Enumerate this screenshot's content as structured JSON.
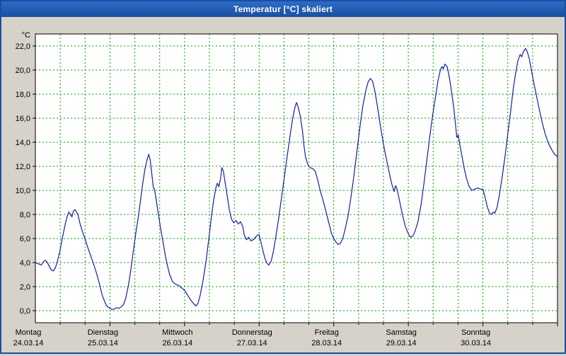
{
  "window": {
    "title": "Temperatur [°C] skaliert"
  },
  "chart_data": {
    "type": "line",
    "title": "Temperatur [°C] skaliert",
    "unit_label": "°C",
    "ylim": [
      -1,
      23
    ],
    "grid": {
      "enabled": true,
      "color": "#00a000",
      "vlines_per_day": 3
    },
    "line_color": "#1a1aa8",
    "y_ticks": {
      "values": [
        0,
        2,
        4,
        6,
        8,
        10,
        12,
        14,
        16,
        18,
        20,
        22
      ],
      "labels": [
        "0,0",
        "2,0",
        "4,0",
        "6,0",
        "8,0",
        "10,0",
        "12,0",
        "14,0",
        "16,0",
        "18,0",
        "20,0",
        "22,0"
      ]
    },
    "x_days": [
      {
        "name": "Montag",
        "date": "24.03.14"
      },
      {
        "name": "Dienstag",
        "date": "25.03.14"
      },
      {
        "name": "Mittwoch",
        "date": "26.03.14"
      },
      {
        "name": "Donnerstag",
        "date": "27.03.14"
      },
      {
        "name": "Freitag",
        "date": "28.03.14"
      },
      {
        "name": "Samstag",
        "date": "29.03.14"
      },
      {
        "name": "Sonntag",
        "date": "30.03.14"
      }
    ],
    "series": [
      {
        "name": "Temperatur",
        "points": [
          [
            0.0,
            4.0
          ],
          [
            0.04,
            3.9
          ],
          [
            0.08,
            3.8
          ],
          [
            0.1,
            4.0
          ],
          [
            0.13,
            4.2
          ],
          [
            0.15,
            4.1
          ],
          [
            0.17,
            3.9
          ],
          [
            0.21,
            3.4
          ],
          [
            0.24,
            3.3
          ],
          [
            0.27,
            3.6
          ],
          [
            0.3,
            4.2
          ],
          [
            0.33,
            5.0
          ],
          [
            0.36,
            6.0
          ],
          [
            0.4,
            7.2
          ],
          [
            0.43,
            7.9
          ],
          [
            0.45,
            8.2
          ],
          [
            0.47,
            8.0
          ],
          [
            0.49,
            7.8
          ],
          [
            0.51,
            8.3
          ],
          [
            0.53,
            8.4
          ],
          [
            0.55,
            8.2
          ],
          [
            0.57,
            8.0
          ],
          [
            0.6,
            7.2
          ],
          [
            0.63,
            6.6
          ],
          [
            0.67,
            5.9
          ],
          [
            0.7,
            5.3
          ],
          [
            0.74,
            4.6
          ],
          [
            0.78,
            3.9
          ],
          [
            0.82,
            3.1
          ],
          [
            0.86,
            2.2
          ],
          [
            0.9,
            1.2
          ],
          [
            0.94,
            0.6
          ],
          [
            0.97,
            0.3
          ],
          [
            1.0,
            0.2
          ],
          [
            1.03,
            0.1
          ],
          [
            1.06,
            0.15
          ],
          [
            1.09,
            0.25
          ],
          [
            1.12,
            0.2
          ],
          [
            1.15,
            0.3
          ],
          [
            1.18,
            0.5
          ],
          [
            1.21,
            1.0
          ],
          [
            1.25,
            2.2
          ],
          [
            1.28,
            3.4
          ],
          [
            1.31,
            4.8
          ],
          [
            1.34,
            6.2
          ],
          [
            1.38,
            7.8
          ],
          [
            1.41,
            9.2
          ],
          [
            1.44,
            10.6
          ],
          [
            1.47,
            11.8
          ],
          [
            1.5,
            12.6
          ],
          [
            1.52,
            13.0
          ],
          [
            1.54,
            12.5
          ],
          [
            1.56,
            11.4
          ],
          [
            1.58,
            10.3
          ],
          [
            1.6,
            10.0
          ],
          [
            1.62,
            9.2
          ],
          [
            1.65,
            8.0
          ],
          [
            1.68,
            6.8
          ],
          [
            1.72,
            5.4
          ],
          [
            1.76,
            4.0
          ],
          [
            1.8,
            3.0
          ],
          [
            1.84,
            2.4
          ],
          [
            1.88,
            2.2
          ],
          [
            1.92,
            2.1
          ],
          [
            1.96,
            1.9
          ],
          [
            2.0,
            1.7
          ],
          [
            2.04,
            1.3
          ],
          [
            2.08,
            0.9
          ],
          [
            2.12,
            0.6
          ],
          [
            2.15,
            0.4
          ],
          [
            2.18,
            0.6
          ],
          [
            2.21,
            1.3
          ],
          [
            2.25,
            2.6
          ],
          [
            2.29,
            4.2
          ],
          [
            2.33,
            6.2
          ],
          [
            2.36,
            7.8
          ],
          [
            2.39,
            9.2
          ],
          [
            2.42,
            10.2
          ],
          [
            2.44,
            10.6
          ],
          [
            2.46,
            10.3
          ],
          [
            2.48,
            10.9
          ],
          [
            2.5,
            11.9
          ],
          [
            2.52,
            11.6
          ],
          [
            2.54,
            10.8
          ],
          [
            2.57,
            9.6
          ],
          [
            2.6,
            8.4
          ],
          [
            2.63,
            7.6
          ],
          [
            2.66,
            7.3
          ],
          [
            2.69,
            7.5
          ],
          [
            2.72,
            7.2
          ],
          [
            2.75,
            7.4
          ],
          [
            2.78,
            7.0
          ],
          [
            2.8,
            6.3
          ],
          [
            2.83,
            5.9
          ],
          [
            2.86,
            6.1
          ],
          [
            2.89,
            5.8
          ],
          [
            2.92,
            5.9
          ],
          [
            2.95,
            6.1
          ],
          [
            2.98,
            6.3
          ],
          [
            3.0,
            6.3
          ],
          [
            3.02,
            5.8
          ],
          [
            3.05,
            5.0
          ],
          [
            3.08,
            4.3
          ],
          [
            3.11,
            3.9
          ],
          [
            3.13,
            3.8
          ],
          [
            3.16,
            4.1
          ],
          [
            3.19,
            4.9
          ],
          [
            3.22,
            6.0
          ],
          [
            3.26,
            7.6
          ],
          [
            3.3,
            9.4
          ],
          [
            3.34,
            11.2
          ],
          [
            3.38,
            13.0
          ],
          [
            3.42,
            14.8
          ],
          [
            3.45,
            16.0
          ],
          [
            3.48,
            16.9
          ],
          [
            3.5,
            17.3
          ],
          [
            3.52,
            17.0
          ],
          [
            3.55,
            16.2
          ],
          [
            3.58,
            15.0
          ],
          [
            3.6,
            13.8
          ],
          [
            3.62,
            12.8
          ],
          [
            3.65,
            12.2
          ],
          [
            3.68,
            11.9
          ],
          [
            3.72,
            11.8
          ],
          [
            3.75,
            11.6
          ],
          [
            3.78,
            11.0
          ],
          [
            3.81,
            10.2
          ],
          [
            3.85,
            9.3
          ],
          [
            3.89,
            8.4
          ],
          [
            3.93,
            7.4
          ],
          [
            3.97,
            6.4
          ],
          [
            4.0,
            6.0
          ],
          [
            4.03,
            5.7
          ],
          [
            4.06,
            5.5
          ],
          [
            4.09,
            5.6
          ],
          [
            4.12,
            6.0
          ],
          [
            4.15,
            6.7
          ],
          [
            4.19,
            7.8
          ],
          [
            4.23,
            9.4
          ],
          [
            4.27,
            11.2
          ],
          [
            4.31,
            13.2
          ],
          [
            4.35,
            15.2
          ],
          [
            4.39,
            17.0
          ],
          [
            4.43,
            18.3
          ],
          [
            4.46,
            19.0
          ],
          [
            4.49,
            19.3
          ],
          [
            4.52,
            19.1
          ],
          [
            4.55,
            18.3
          ],
          [
            4.58,
            17.2
          ],
          [
            4.61,
            16.0
          ],
          [
            4.64,
            14.8
          ],
          [
            4.68,
            13.4
          ],
          [
            4.72,
            12.2
          ],
          [
            4.75,
            11.3
          ],
          [
            4.78,
            10.5
          ],
          [
            4.81,
            9.9
          ],
          [
            4.83,
            10.4
          ],
          [
            4.85,
            10.1
          ],
          [
            4.88,
            9.2
          ],
          [
            4.92,
            8.0
          ],
          [
            4.96,
            7.0
          ],
          [
            5.0,
            6.4
          ],
          [
            5.03,
            6.1
          ],
          [
            5.06,
            6.2
          ],
          [
            5.09,
            6.6
          ],
          [
            5.13,
            7.4
          ],
          [
            5.17,
            8.8
          ],
          [
            5.21,
            10.6
          ],
          [
            5.25,
            12.6
          ],
          [
            5.29,
            14.6
          ],
          [
            5.33,
            16.4
          ],
          [
            5.37,
            18.0
          ],
          [
            5.4,
            19.2
          ],
          [
            5.43,
            20.0
          ],
          [
            5.45,
            20.3
          ],
          [
            5.47,
            20.1
          ],
          [
            5.49,
            20.5
          ],
          [
            5.52,
            20.3
          ],
          [
            5.55,
            19.4
          ],
          [
            5.58,
            18.2
          ],
          [
            5.61,
            16.8
          ],
          [
            5.63,
            15.6
          ],
          [
            5.65,
            14.4
          ],
          [
            5.67,
            14.6
          ],
          [
            5.69,
            13.8
          ],
          [
            5.72,
            12.8
          ],
          [
            5.75,
            11.8
          ],
          [
            5.78,
            11.0
          ],
          [
            5.81,
            10.4
          ],
          [
            5.85,
            10.0
          ],
          [
            5.89,
            10.1
          ],
          [
            5.93,
            10.2
          ],
          [
            5.97,
            10.1
          ],
          [
            6.0,
            10.1
          ],
          [
            6.03,
            9.4
          ],
          [
            6.06,
            8.6
          ],
          [
            6.09,
            8.1
          ],
          [
            6.11,
            8.0
          ],
          [
            6.14,
            8.2
          ],
          [
            6.16,
            8.1
          ],
          [
            6.19,
            8.6
          ],
          [
            6.22,
            9.6
          ],
          [
            6.26,
            11.2
          ],
          [
            6.3,
            13.0
          ],
          [
            6.34,
            15.0
          ],
          [
            6.38,
            17.0
          ],
          [
            6.41,
            18.6
          ],
          [
            6.44,
            19.8
          ],
          [
            6.47,
            20.8
          ],
          [
            6.5,
            21.3
          ],
          [
            6.52,
            21.1
          ],
          [
            6.54,
            21.5
          ],
          [
            6.57,
            21.8
          ],
          [
            6.59,
            21.6
          ],
          [
            6.62,
            21.0
          ],
          [
            6.65,
            20.0
          ],
          [
            6.68,
            19.0
          ],
          [
            6.72,
            17.8
          ],
          [
            6.76,
            16.6
          ],
          [
            6.8,
            15.5
          ],
          [
            6.84,
            14.6
          ],
          [
            6.88,
            13.9
          ],
          [
            6.92,
            13.4
          ],
          [
            6.96,
            13.0
          ],
          [
            7.0,
            12.8
          ]
        ]
      }
    ]
  }
}
